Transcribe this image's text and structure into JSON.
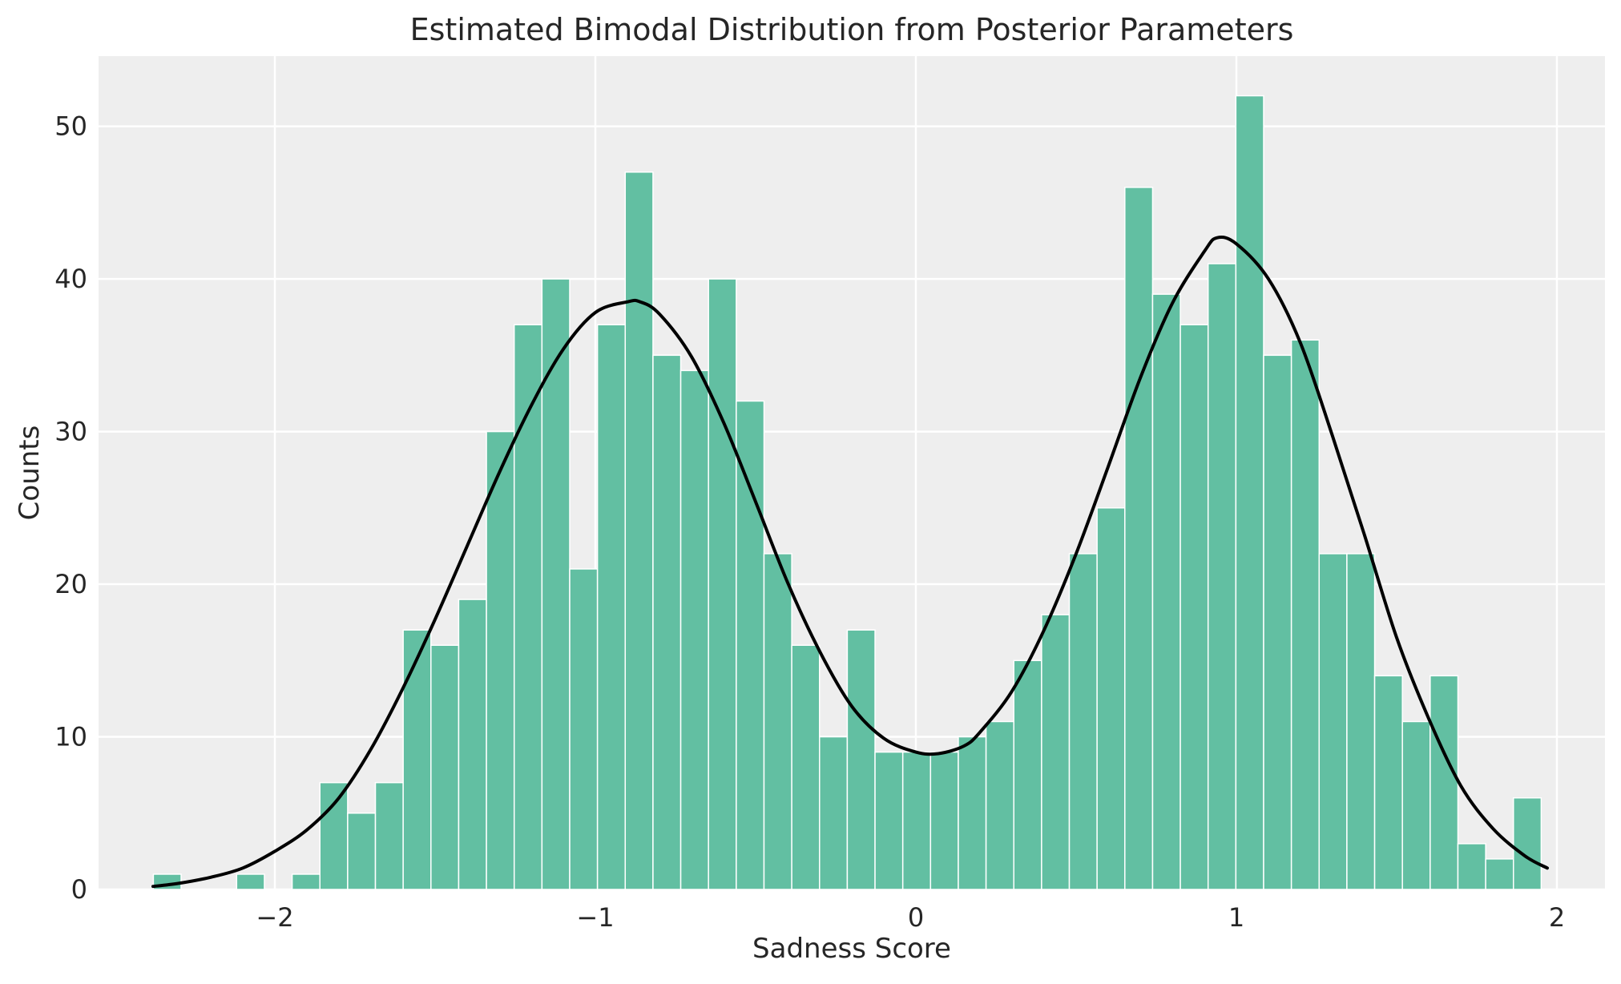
{
  "chart_data": {
    "type": "bar",
    "title": "Estimated Bimodal Distribution from Posterior Parameters",
    "xlabel": "Sadness Score",
    "ylabel": "Counts",
    "xlim": [
      -2.55,
      2.15
    ],
    "ylim": [
      0,
      54.6
    ],
    "xticks": [
      -2,
      -1,
      0,
      1,
      2
    ],
    "xtick_labels": [
      "−2",
      "−1",
      "0",
      "1",
      "2"
    ],
    "yticks": [
      0,
      10,
      20,
      30,
      40,
      50
    ],
    "ytick_labels": [
      "0",
      "10",
      "20",
      "30",
      "40",
      "50"
    ],
    "grid": true,
    "bin_start": -2.379,
    "bin_width": 0.0866,
    "values": [
      1,
      0,
      0,
      1,
      0,
      1,
      7,
      5,
      7,
      17,
      16,
      19,
      30,
      37,
      40,
      21,
      37,
      47,
      35,
      34,
      40,
      32,
      22,
      16,
      10,
      17,
      9,
      9,
      9,
      10,
      11,
      15,
      18,
      22,
      25,
      46,
      39,
      37,
      41,
      52,
      35,
      36,
      22,
      22,
      14,
      11,
      14,
      3,
      2,
      6
    ],
    "density_curve": {
      "x": [
        -2.38,
        -2.3,
        -2.2,
        -2.1,
        -2.0,
        -1.9,
        -1.8,
        -1.7,
        -1.6,
        -1.5,
        -1.4,
        -1.3,
        -1.2,
        -1.1,
        -1.0,
        -0.9,
        -0.86,
        -0.8,
        -0.7,
        -0.6,
        -0.5,
        -0.4,
        -0.3,
        -0.2,
        -0.1,
        0.0,
        0.07,
        0.15,
        0.2,
        0.3,
        0.4,
        0.5,
        0.6,
        0.7,
        0.8,
        0.9,
        0.94,
        1.0,
        1.1,
        1.2,
        1.3,
        1.4,
        1.5,
        1.6,
        1.7,
        1.8,
        1.9,
        1.97
      ],
      "y": [
        0.2,
        0.4,
        0.8,
        1.4,
        2.5,
        3.9,
        6.0,
        9.2,
        13.2,
        17.7,
        22.5,
        27.3,
        31.7,
        35.4,
        37.8,
        38.5,
        38.5,
        37.7,
        34.9,
        30.6,
        25.4,
        20.1,
        15.6,
        12.0,
        9.9,
        9.0,
        8.9,
        9.4,
        10.3,
        13.0,
        17.0,
        22.0,
        27.7,
        33.5,
        38.4,
        41.8,
        42.7,
        42.3,
        40.0,
        35.8,
        29.7,
        23.2,
        16.5,
        11.2,
        6.8,
        4.0,
        2.2,
        1.4
      ]
    }
  }
}
